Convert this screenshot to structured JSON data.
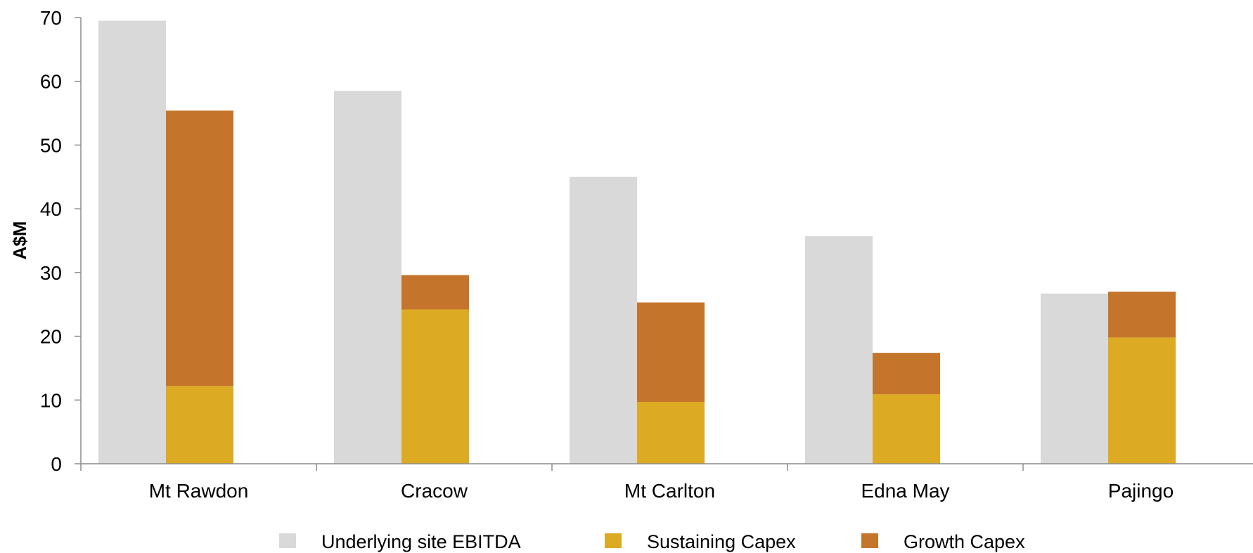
{
  "chart_data": {
    "type": "bar",
    "title": "",
    "xlabel": "",
    "ylabel": "A$M",
    "ylim": [
      0,
      70
    ],
    "yticks": [
      0,
      10,
      20,
      30,
      40,
      50,
      60,
      70
    ],
    "categories": [
      "Mt Rawdon",
      "Cracow",
      "Mt Carlton",
      "Edna May",
      "Pajingo"
    ],
    "series": [
      {
        "name": "Underlying site EBITDA",
        "color": "#d9d9d9",
        "stack": "ebitda",
        "values": [
          69.5,
          58.5,
          45.0,
          35.7,
          26.7
        ]
      },
      {
        "name": "Sustaining Capex",
        "color": "#dcaa23",
        "stack": "capex",
        "values": [
          12.2,
          24.2,
          9.7,
          10.9,
          19.8
        ]
      },
      {
        "name": "Growth Capex",
        "color": "#c4752b",
        "stack": "capex",
        "values": [
          43.2,
          5.4,
          15.6,
          6.5,
          7.2
        ]
      }
    ],
    "grid": false,
    "legend": "bottom"
  }
}
